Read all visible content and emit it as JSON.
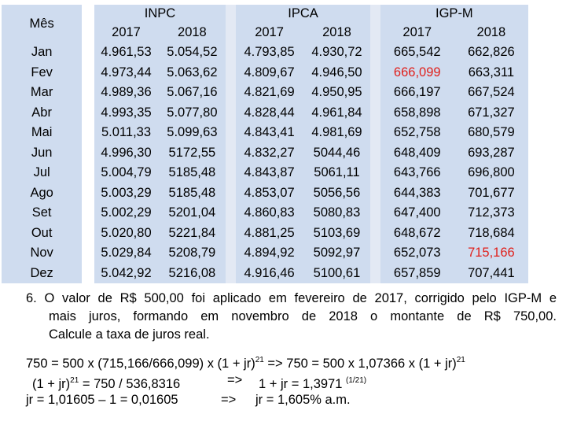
{
  "table": {
    "mes_header": "Mês",
    "groups": [
      "INPC",
      "IPCA",
      "IGP-M"
    ],
    "years": [
      "2017",
      "2018"
    ],
    "rows": [
      {
        "month": "Jan",
        "inpc": [
          "4.961,53",
          "5.054,52"
        ],
        "ipca": [
          "4.793,85",
          "4.930,72"
        ],
        "igpm": [
          "665,542",
          "662,826"
        ]
      },
      {
        "month": "Fev",
        "inpc": [
          "4.973,44",
          "5.063,62"
        ],
        "ipca": [
          "4.809,67",
          "4.946,50"
        ],
        "igpm": [
          "666,099",
          "663,311"
        ]
      },
      {
        "month": "Mar",
        "inpc": [
          "4.989,36",
          "5.067,16"
        ],
        "ipca": [
          "4.821,69",
          "4.950,95"
        ],
        "igpm": [
          "666,197",
          "667,524"
        ]
      },
      {
        "month": "Abr",
        "inpc": [
          "4.993,35",
          "5.077,80"
        ],
        "ipca": [
          "4.828,44",
          "4.961,84"
        ],
        "igpm": [
          "658,898",
          "671,327"
        ]
      },
      {
        "month": "Mai",
        "inpc": [
          "5.011,33",
          "5.099,63"
        ],
        "ipca": [
          "4.843,41",
          "4.981,69"
        ],
        "igpm": [
          "652,758",
          "680,579"
        ]
      },
      {
        "month": "Jun",
        "inpc": [
          "4.996,30",
          "5172,55"
        ],
        "ipca": [
          "4.832,27",
          "5044,46"
        ],
        "igpm": [
          "648,409",
          "693,287"
        ]
      },
      {
        "month": "Jul",
        "inpc": [
          "5.004,79",
          "5185,48"
        ],
        "ipca": [
          "4.843,87",
          "5061,11"
        ],
        "igpm": [
          "643,766",
          "696,800"
        ]
      },
      {
        "month": "Ago",
        "inpc": [
          "5.003,29",
          "5185,48"
        ],
        "ipca": [
          "4.853,07",
          "5056,56"
        ],
        "igpm": [
          "644,383",
          "701,677"
        ]
      },
      {
        "month": "Set",
        "inpc": [
          "5.002,29",
          "5201,04"
        ],
        "ipca": [
          "4.860,83",
          "5080,83"
        ],
        "igpm": [
          "647,400",
          "712,373"
        ]
      },
      {
        "month": "Out",
        "inpc": [
          "5.020,80",
          "5221,84"
        ],
        "ipca": [
          "4.881,25",
          "5103,69"
        ],
        "igpm": [
          "648,672",
          "718,684"
        ]
      },
      {
        "month": "Nov",
        "inpc": [
          "5.029,84",
          "5208,79"
        ],
        "ipca": [
          "4.894,92",
          "5092,97"
        ],
        "igpm": [
          "652,073",
          "715,166"
        ]
      },
      {
        "month": "Dez",
        "inpc": [
          "5.042,92",
          "5216,08"
        ],
        "ipca": [
          "4.916,46",
          "5100,61"
        ],
        "igpm": [
          "657,859",
          "707,441"
        ]
      }
    ],
    "highlight_color": "#e0201b"
  },
  "problem": {
    "line1": "6. O valor de R$ 500,00 foi aplicado em fevereiro de 2017, corrigido pelo IGP-M e",
    "line2": "mais juros, formando em novembro de 2018 o montante de R$ 750,00.",
    "line3": "Calcule a taxa de juros real."
  },
  "calc": {
    "l1a": "750  = 500 x (715,166/666,099) x (1 + jr)",
    "l1_exp1": "21",
    "l1b": "  =>  750  = 500 x 1,07366 x (1 + jr)",
    "l1_exp2": "21",
    "l2a": "(1 + jr)",
    "l2_exp": "21",
    "l2b": "  =  750 / 536,8316",
    "l2_arrow": "=>",
    "l2c": "1 + jr = 1,3971",
    "l2_exp2": "(1/21)",
    "l3a": "jr =  1,01605 – 1 = 0,01605",
    "l3_arrow": "=>",
    "l3b": "jr = 1,605% a.m."
  }
}
